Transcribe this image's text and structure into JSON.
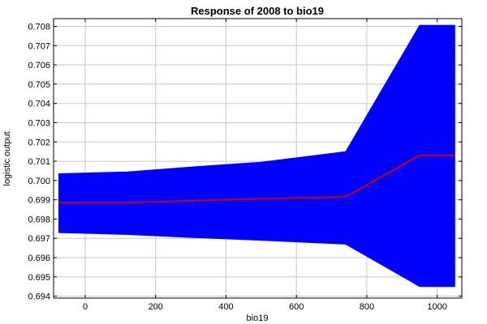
{
  "chart_data": {
    "type": "line",
    "title": "Response of 2008 to bio19",
    "xlabel": "bio19",
    "ylabel": "logistic output",
    "xlim": [
      -90,
      1070
    ],
    "ylim": [
      0.6939,
      0.7084
    ],
    "x_ticks": [
      0,
      200,
      400,
      600,
      800,
      1000
    ],
    "y_ticks": [
      0.694,
      0.695,
      0.696,
      0.697,
      0.698,
      0.699,
      0.7,
      0.701,
      0.702,
      0.703,
      0.704,
      0.705,
      0.706,
      0.707,
      0.708
    ],
    "y_tick_labels": [
      "0.694",
      "0.695",
      "0.696",
      "0.697",
      "0.698",
      "0.699",
      "0.700",
      "0.701",
      "0.702",
      "0.703",
      "0.704",
      "0.705",
      "0.706",
      "0.707",
      "0.708"
    ],
    "grid": true,
    "band": {
      "color": "#0000ff",
      "x": [
        -75,
        120,
        300,
        500,
        740,
        950,
        1050
      ],
      "upper": [
        0.70035,
        0.70045,
        0.7007,
        0.70095,
        0.7015,
        0.70805,
        0.70805
      ],
      "lower": [
        0.6973,
        0.6972,
        0.69705,
        0.6969,
        0.6967,
        0.6945,
        0.6945
      ]
    },
    "series": [
      {
        "color": "#cc0000",
        "x": [
          -75,
          120,
          300,
          500,
          740,
          950,
          1050
        ],
        "values": [
          0.69885,
          0.69885,
          0.69895,
          0.69905,
          0.69915,
          0.7013,
          0.7013
        ]
      }
    ]
  }
}
